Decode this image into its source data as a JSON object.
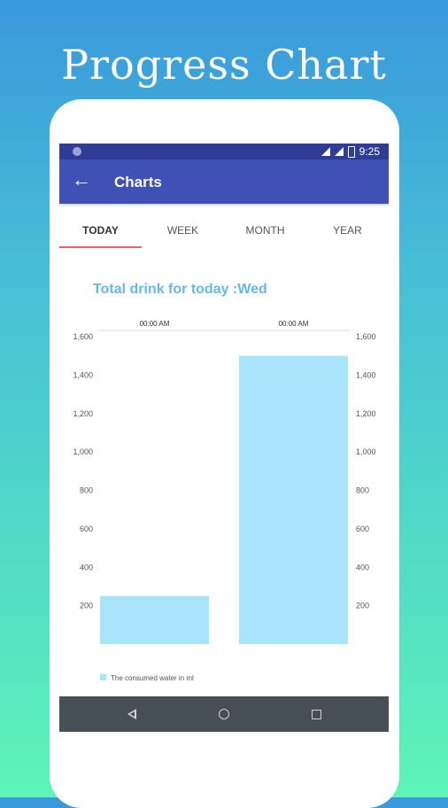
{
  "headline": "Progress Chart",
  "status_bar": {
    "time": "9:25"
  },
  "toolbar": {
    "title": "Charts",
    "back_icon": "arrow-left-icon"
  },
  "tabs": [
    {
      "label": "TODAY",
      "active": true
    },
    {
      "label": "WEEK",
      "active": false
    },
    {
      "label": "MONTH",
      "active": false
    },
    {
      "label": "YEAR",
      "active": false
    }
  ],
  "colors": {
    "toolbar": "#3f51b5",
    "statusbar": "#2f3d95",
    "tab_indicator": "#ef5d72",
    "bar": "#a8e4fb",
    "chart_title": "#67b8e8"
  },
  "chart_data": {
    "type": "bar",
    "title": "Total drink for today :Wed",
    "categories": [
      "00:00 AM",
      "00:00 AM"
    ],
    "series": [
      {
        "name": "The consumed water in ml",
        "values": [
          250,
          1500
        ]
      }
    ],
    "ylim": [
      0,
      1600
    ],
    "yticks": [
      "1,600",
      "1,400",
      "1,200",
      "1,000",
      "800",
      "600",
      "400",
      "200"
    ],
    "ytick_values": [
      1600,
      1400,
      1200,
      1000,
      800,
      600,
      400,
      200
    ],
    "legend": "bottom-left"
  },
  "nav_bar": {
    "icons": [
      "back-icon",
      "home-icon",
      "recents-icon"
    ]
  }
}
